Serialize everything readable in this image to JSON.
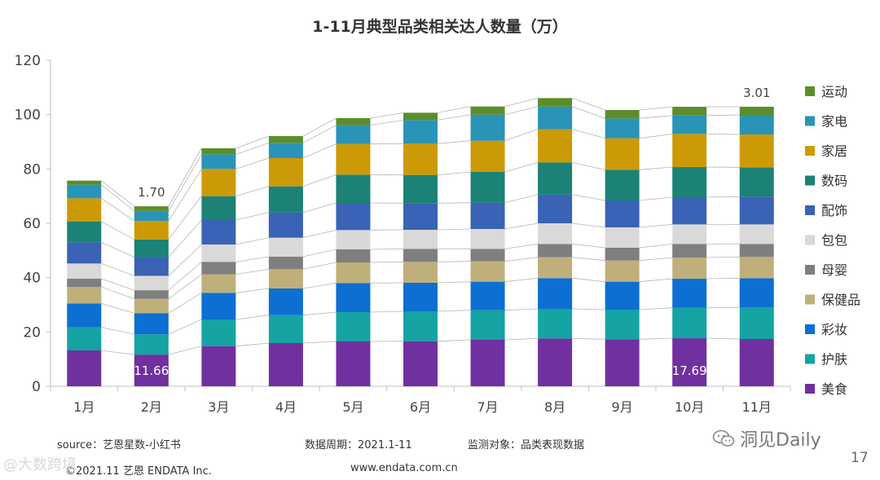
{
  "chart_data": {
    "type": "bar",
    "stacked": true,
    "title": "1-11月典型品类相关达人数量（万）",
    "xlabel": "",
    "ylabel": "",
    "ylim": [
      0,
      120
    ],
    "yticks": [
      0,
      20,
      40,
      60,
      80,
      100,
      120
    ],
    "categories": [
      "1月",
      "2月",
      "3月",
      "4月",
      "5月",
      "6月",
      "7月",
      "8月",
      "9月",
      "10月",
      "11月"
    ],
    "series": [
      {
        "name": "美食",
        "color": "#7030a0",
        "values": [
          13.2,
          11.66,
          14.8,
          15.9,
          16.5,
          16.6,
          17.1,
          17.6,
          17.3,
          17.69,
          17.4
        ]
      },
      {
        "name": "护肤",
        "color": "#15a3a3",
        "values": [
          8.5,
          7.5,
          9.8,
          10.3,
          10.8,
          11.0,
          10.9,
          10.9,
          10.9,
          11.2,
          11.6
        ]
      },
      {
        "name": "彩妆",
        "color": "#0d6fd1",
        "values": [
          8.8,
          7.7,
          9.8,
          9.8,
          10.7,
          10.5,
          10.5,
          11.3,
          10.3,
          10.7,
          10.8
        ]
      },
      {
        "name": "保健品",
        "color": "#bfb07b",
        "values": [
          6.1,
          5.3,
          6.8,
          7.1,
          7.6,
          7.7,
          7.5,
          7.7,
          7.8,
          7.8,
          7.8
        ]
      },
      {
        "name": "母婴",
        "color": "#7f7f7f",
        "values": [
          3.0,
          3.2,
          4.6,
          4.6,
          4.8,
          4.8,
          4.6,
          4.9,
          4.7,
          5.0,
          4.8
        ]
      },
      {
        "name": "包包",
        "color": "#d9d9d9",
        "values": [
          5.6,
          5.3,
          6.4,
          7.0,
          7.1,
          7.0,
          7.3,
          7.6,
          7.5,
          7.2,
          7.2
        ]
      },
      {
        "name": "配饰",
        "color": "#3a62b5",
        "values": [
          7.8,
          6.9,
          9.0,
          9.3,
          10.0,
          9.8,
          9.7,
          10.6,
          9.9,
          10.0,
          10.2
        ]
      },
      {
        "name": "数码",
        "color": "#1b8275",
        "values": [
          7.6,
          6.5,
          8.8,
          9.6,
          10.4,
          10.4,
          11.3,
          11.8,
          11.3,
          11.1,
          10.8
        ]
      },
      {
        "name": "家居",
        "color": "#cc9a06",
        "values": [
          8.6,
          6.8,
          10.0,
          10.4,
          11.3,
          11.5,
          11.5,
          12.2,
          11.6,
          12.2,
          12.1
        ]
      },
      {
        "name": "家电",
        "color": "#2a93b8",
        "values": [
          5.0,
          3.7,
          5.4,
          5.6,
          6.9,
          8.7,
          9.6,
          8.4,
          7.3,
          6.8,
          7.2
        ]
      },
      {
        "name": "运动",
        "color": "#5b8e2a",
        "values": [
          1.5,
          1.7,
          2.2,
          2.5,
          2.6,
          2.7,
          3.0,
          3.1,
          3.1,
          3.2,
          3.01
        ]
      }
    ],
    "annotations": [
      {
        "text": "1.70",
        "category": "2月",
        "series": "运动",
        "position": "above"
      },
      {
        "text": "11.66",
        "category": "2月",
        "series": "美食",
        "position": "inside"
      },
      {
        "text": "17.69",
        "category": "10月",
        "series": "美食",
        "position": "inside"
      },
      {
        "text": "3.01",
        "category": "11月",
        "series": "运动",
        "position": "above"
      }
    ],
    "legend": "right",
    "grid": false
  },
  "footer": {
    "source": "source：艺恩星数-小红书",
    "period": "数据周期：2021.1-11",
    "target": "监测对象：品类表现数据",
    "copyright": "©2021.11 艺恩 ENDATA Inc.",
    "website": "www.endata.com.cn",
    "page_number": "17"
  },
  "watermarks": {
    "left": "@大数跨境",
    "right": "洞见Daily"
  }
}
